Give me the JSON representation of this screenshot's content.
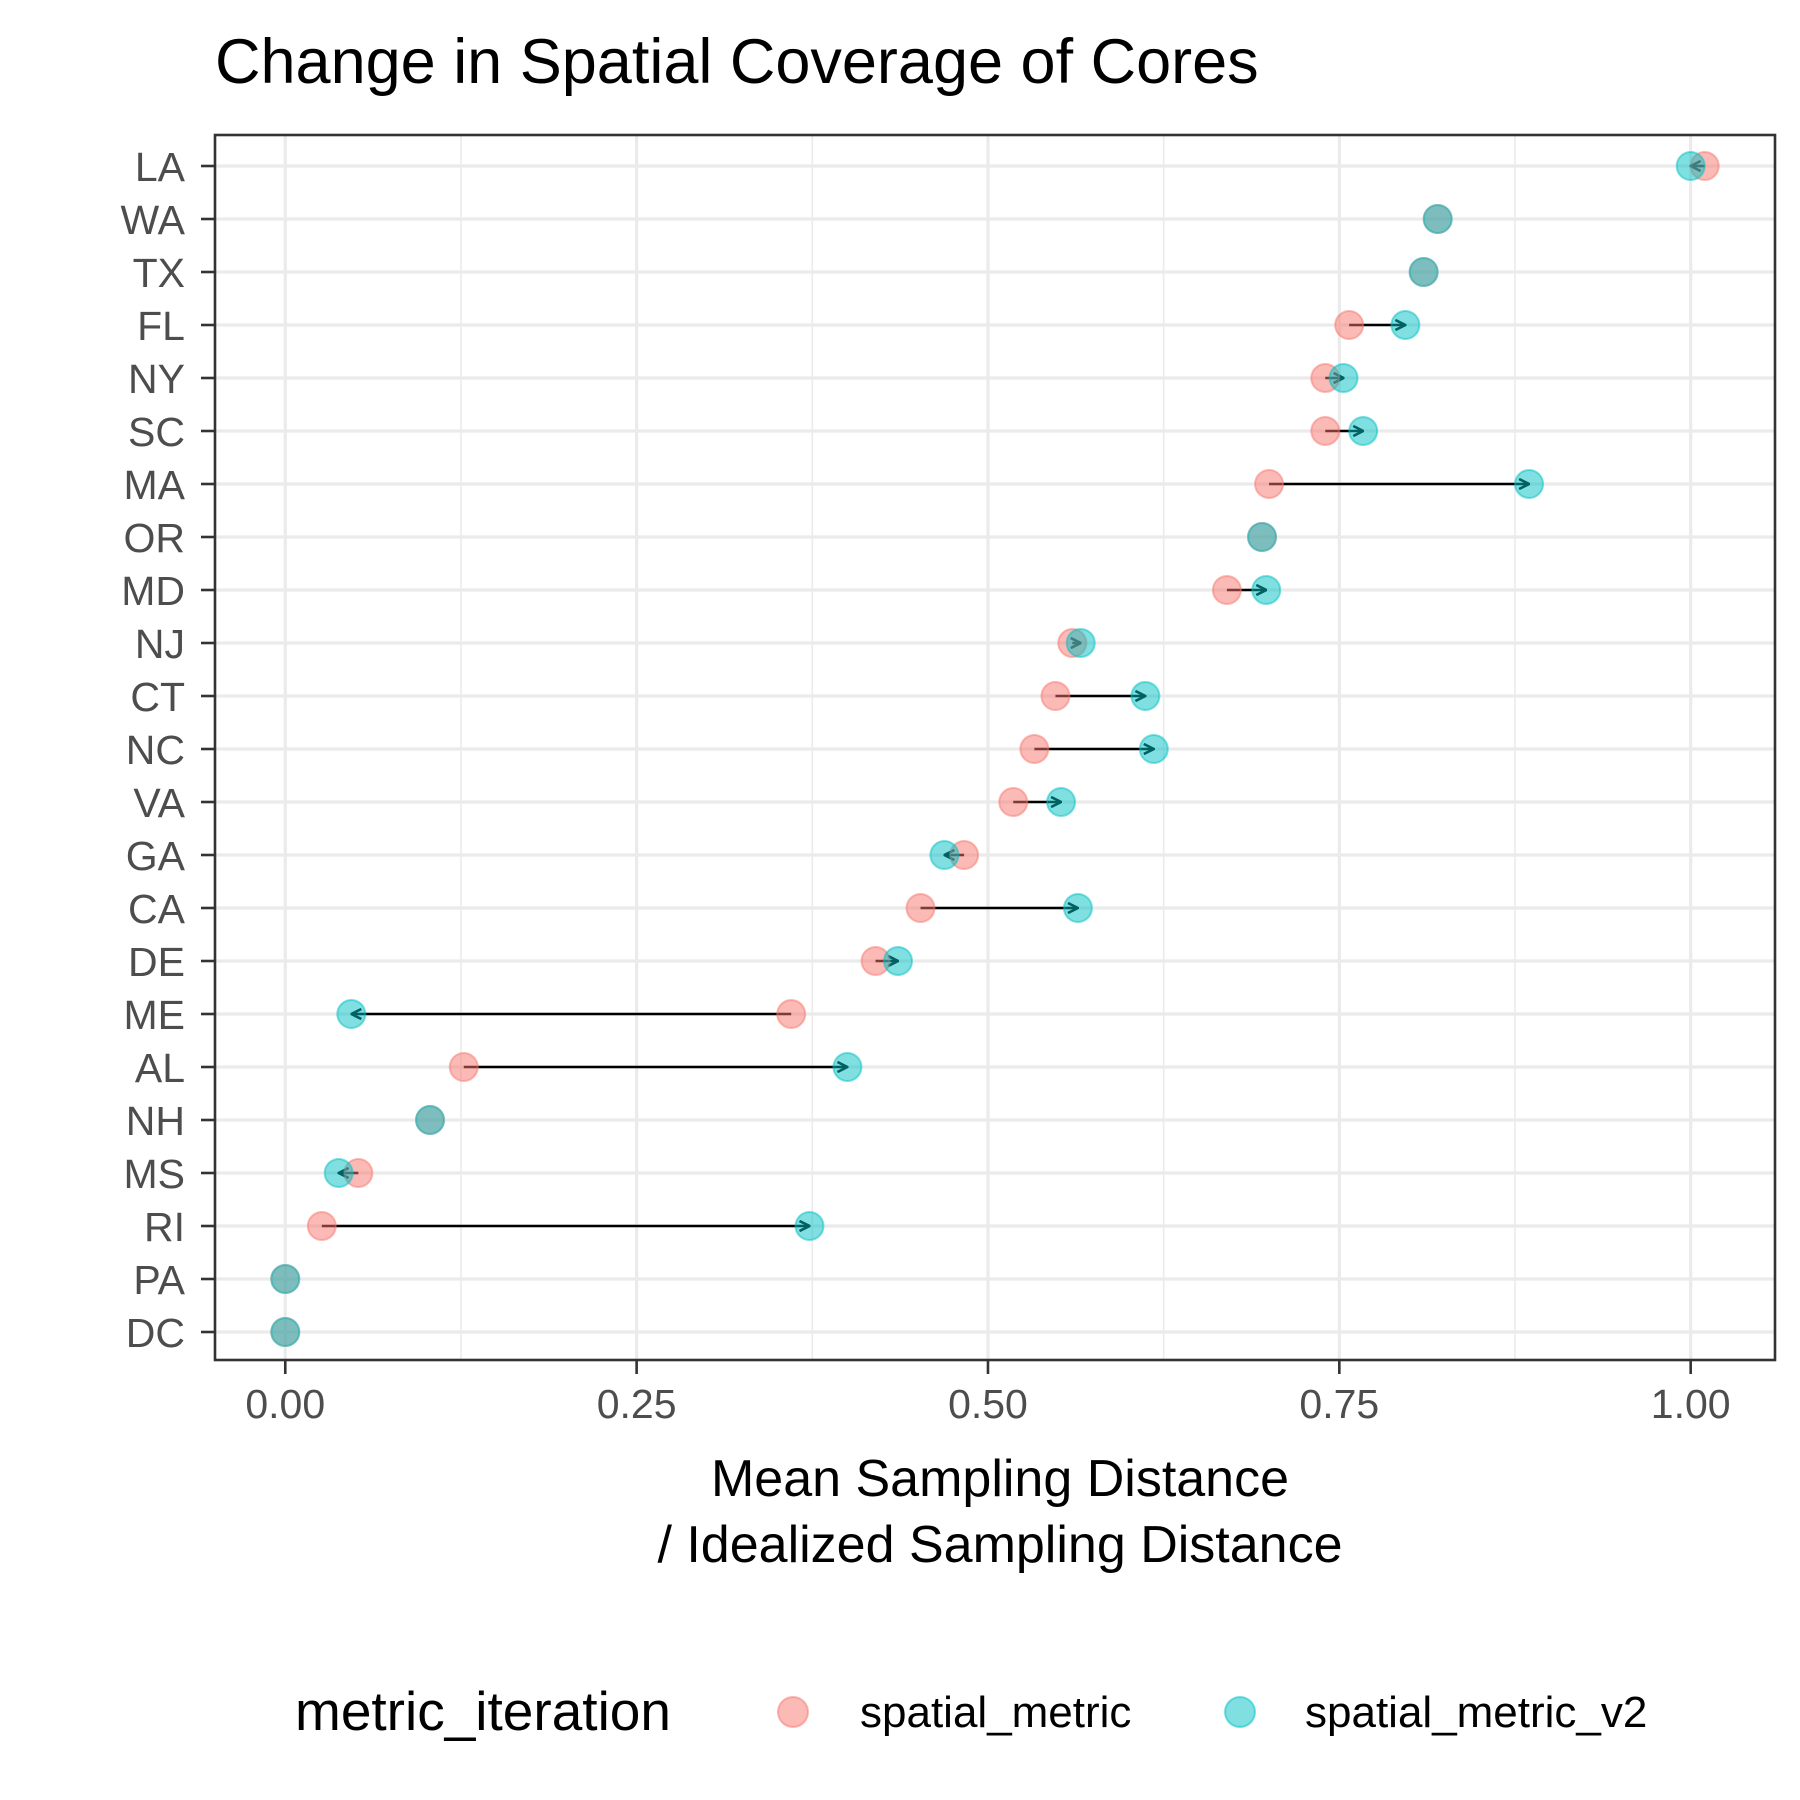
{
  "chart_data": {
    "type": "dumbbell-arrow",
    "title": "Change in Spatial Coverage of Cores",
    "xlabel_line1": "Mean Sampling Distance",
    "xlabel_line2": "/ Idealized Sampling Distance",
    "ylabel": "",
    "xlim": [
      -0.05,
      1.06
    ],
    "xticks": [
      0,
      0.25,
      0.5,
      0.75,
      1.0
    ],
    "xtick_labels": [
      "0.00",
      "0.25",
      "0.50",
      "0.75",
      "1.00"
    ],
    "grid": true,
    "legend": {
      "title": "metric_iteration",
      "position": "bottom",
      "entries": [
        {
          "name": "spatial_metric",
          "color": "#f8766d"
        },
        {
          "name": "spatial_metric_v2",
          "color": "#00bfc4"
        }
      ]
    },
    "categories": [
      "LA",
      "WA",
      "TX",
      "FL",
      "NY",
      "SC",
      "MA",
      "OR",
      "MD",
      "NJ",
      "CT",
      "NC",
      "VA",
      "GA",
      "CA",
      "DE",
      "ME",
      "AL",
      "NH",
      "MS",
      "RI",
      "PA",
      "DC"
    ],
    "series": [
      {
        "name": "spatial_metric",
        "color": "#f8766d",
        "values": [
          1.01,
          0.82,
          0.81,
          0.757,
          0.74,
          0.74,
          0.7,
          0.695,
          0.67,
          0.56,
          0.548,
          0.533,
          0.518,
          0.483,
          0.452,
          0.42,
          0.36,
          0.127,
          0.103,
          0.052,
          0.026,
          0.0,
          0.0
        ]
      },
      {
        "name": "spatial_metric_v2",
        "color": "#00bfc4",
        "values": [
          1.0,
          0.82,
          0.81,
          0.797,
          0.753,
          0.767,
          0.885,
          0.695,
          0.698,
          0.566,
          0.612,
          0.618,
          0.552,
          0.469,
          0.564,
          0.436,
          0.047,
          0.4,
          0.103,
          0.038,
          0.373,
          0.0,
          0.0
        ]
      }
    ]
  }
}
